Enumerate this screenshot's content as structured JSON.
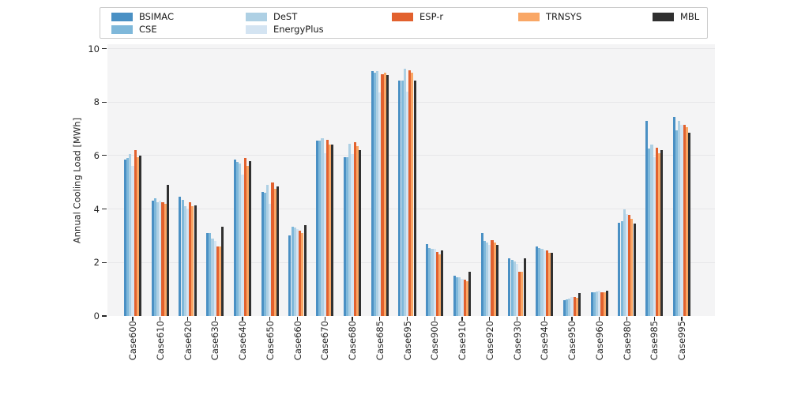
{
  "chart_data": {
    "type": "bar",
    "title": "",
    "xlabel": "",
    "ylabel": "Annual Cooling Load [MWh]",
    "ylim": [
      0,
      10.16
    ],
    "yticks": [
      "0",
      "2",
      "4",
      "6",
      "8",
      "10"
    ],
    "ytick_values": [
      0,
      2,
      4,
      6,
      8,
      10
    ],
    "grid": "horizontal",
    "legend_position": "top",
    "plot_bg_color": "#f4f4f5",
    "gridline_color": "#e7e7e9",
    "categories": [
      "Case600",
      "Case610",
      "Case620",
      "Case630",
      "Case640",
      "Case650",
      "Case660",
      "Case670",
      "Case680",
      "Case685",
      "Case695",
      "Case900",
      "Case910",
      "Case920",
      "Case930",
      "Case940",
      "Case950",
      "Case960",
      "Case980",
      "Case985",
      "Case995"
    ],
    "series": [
      {
        "name": "BSIMAC",
        "color": "#4a90c4",
        "values": [
          5.85,
          4.3,
          4.45,
          3.1,
          5.85,
          4.65,
          3.0,
          6.55,
          5.95,
          9.15,
          8.8,
          2.7,
          1.5,
          3.1,
          2.15,
          2.6,
          0.6,
          0.9,
          3.5,
          7.3,
          7.45
        ]
      },
      {
        "name": "CSE",
        "color": "#7fb8da",
        "values": [
          5.9,
          4.4,
          4.35,
          3.1,
          5.75,
          4.6,
          3.35,
          6.55,
          5.95,
          9.1,
          8.8,
          2.55,
          1.45,
          2.8,
          2.1,
          2.55,
          0.62,
          0.9,
          3.55,
          6.25,
          6.95
        ]
      },
      {
        "name": "DeST",
        "color": "#aed0e4",
        "values": [
          6.05,
          4.25,
          4.1,
          2.9,
          5.7,
          4.9,
          3.3,
          6.65,
          6.45,
          9.15,
          9.25,
          2.5,
          1.45,
          2.75,
          2.05,
          2.5,
          0.65,
          0.92,
          4.0,
          6.4,
          7.3
        ]
      },
      {
        "name": "EnergyPlus",
        "color": "#d4e4f2",
        "values": [
          5.6,
          4.3,
          4.0,
          2.8,
          5.3,
          4.2,
          3.25,
          6.1,
          6.05,
          8.35,
          8.4,
          2.5,
          1.4,
          2.65,
          1.95,
          2.45,
          0.7,
          0.95,
          3.8,
          5.95,
          7.15
        ]
      },
      {
        "name": "ESP-r",
        "color": "#e2612e",
        "values": [
          6.2,
          4.25,
          4.25,
          2.6,
          5.9,
          5.0,
          3.2,
          6.6,
          6.5,
          9.05,
          9.2,
          2.4,
          1.35,
          2.85,
          1.65,
          2.45,
          0.72,
          0.9,
          3.78,
          6.3,
          7.15
        ]
      },
      {
        "name": "TRNSYS",
        "color": "#f9a766",
        "values": [
          5.95,
          4.2,
          4.1,
          2.6,
          5.6,
          4.75,
          3.1,
          6.4,
          6.35,
          9.1,
          9.1,
          2.3,
          1.3,
          2.75,
          1.65,
          2.35,
          0.68,
          0.88,
          3.62,
          6.1,
          7.05
        ]
      },
      {
        "name": "MBL",
        "color": "#303030",
        "values": [
          6.0,
          4.9,
          4.15,
          3.35,
          5.8,
          4.85,
          3.4,
          6.4,
          6.2,
          9.0,
          8.8,
          2.45,
          1.65,
          2.65,
          2.15,
          2.35,
          0.85,
          0.95,
          3.45,
          6.2,
          6.85
        ]
      }
    ]
  }
}
